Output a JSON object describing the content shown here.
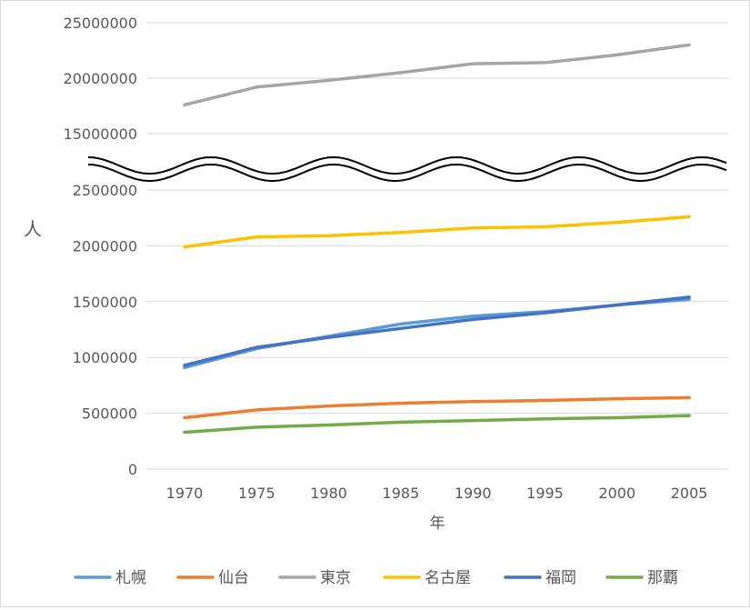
{
  "chart_data": {
    "type": "line",
    "title": "",
    "xlabel": "年",
    "ylabel": "人",
    "x": [
      1970,
      1975,
      1980,
      1985,
      1990,
      1995,
      2000,
      2005
    ],
    "x_tick_labels": [
      "1970",
      "1975",
      "1980",
      "1985",
      "1990",
      "1995",
      "2000",
      "2005"
    ],
    "axis_break": true,
    "upper_ylim": [
      15000000,
      25000000
    ],
    "upper_y_tick_labels": [
      "15000000",
      "20000000",
      "25000000"
    ],
    "lower_ylim": [
      0,
      2500000
    ],
    "lower_y_tick_labels": [
      "0",
      "500000",
      "1000000",
      "1500000",
      "2000000",
      "2500000"
    ],
    "grid": true,
    "legend_position": "bottom",
    "series": [
      {
        "name": "札幌",
        "color": "#5B9BD5",
        "values": [
          910000,
          1080000,
          1190000,
          1300000,
          1370000,
          1410000,
          1470000,
          1520000
        ]
      },
      {
        "name": "仙台",
        "color": "#ED7D31",
        "values": [
          460000,
          530000,
          565000,
          590000,
          605000,
          615000,
          630000,
          640000
        ]
      },
      {
        "name": "東京",
        "color": "#A5A5A5",
        "values": [
          17600000,
          19200000,
          19800000,
          20500000,
          21300000,
          21400000,
          22100000,
          23000000
        ]
      },
      {
        "name": "名古屋",
        "color": "#FFC000",
        "values": [
          1990000,
          2080000,
          2090000,
          2120000,
          2160000,
          2170000,
          2210000,
          2260000
        ]
      },
      {
        "name": "福岡",
        "color": "#4472C4",
        "values": [
          930000,
          1090000,
          1180000,
          1260000,
          1340000,
          1400000,
          1470000,
          1540000
        ]
      },
      {
        "name": "那覇",
        "color": "#70AD47",
        "values": [
          330000,
          375000,
          395000,
          420000,
          435000,
          450000,
          460000,
          480000
        ]
      }
    ]
  }
}
